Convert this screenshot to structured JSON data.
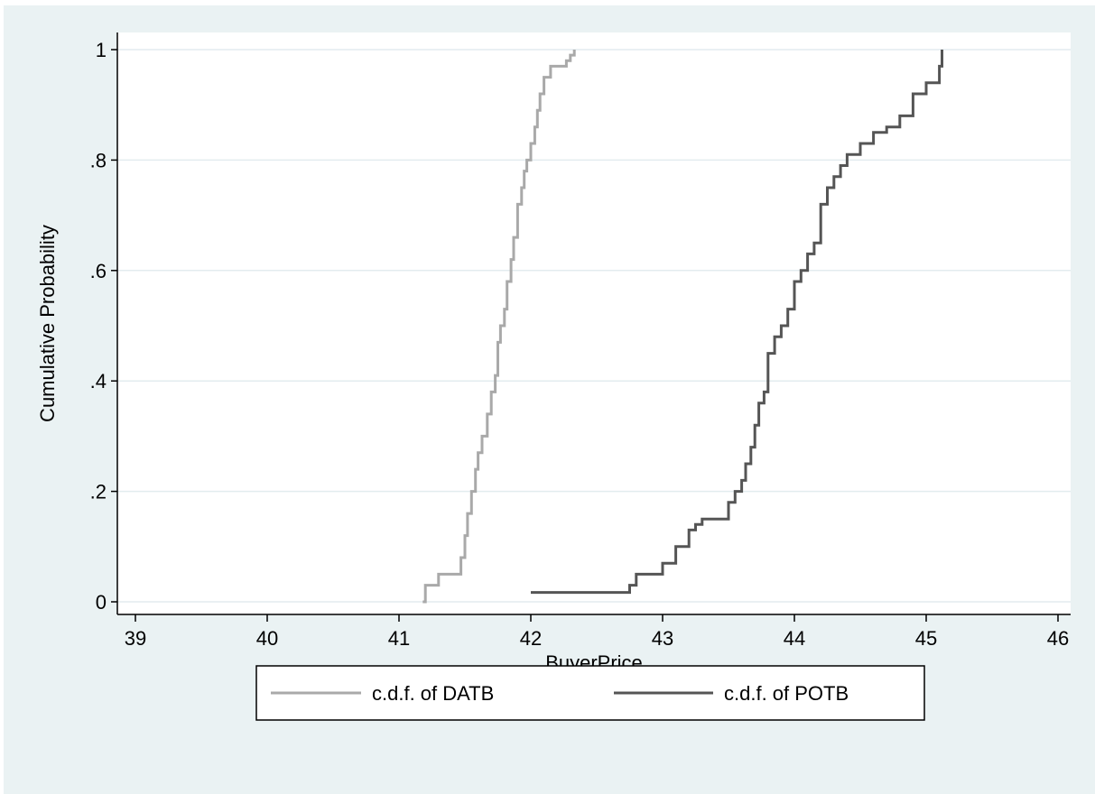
{
  "chart_data": {
    "type": "line",
    "subtype": "step",
    "xlabel": "BuyerPrice",
    "ylabel": "Cumulative Probability",
    "xlim": [
      39,
      46
    ],
    "ylim": [
      0,
      1
    ],
    "xticks": [
      "39",
      "40",
      "41",
      "42",
      "43",
      "44",
      "45",
      "46"
    ],
    "yticks": [
      "0",
      ".2",
      ".4",
      ".6",
      ".8",
      "1"
    ],
    "grid": true,
    "legend_position": "bottom",
    "colors": {
      "background": "#eaf2f3",
      "plot": "#ffffff",
      "grid": "#e3ecef",
      "datb": "#a9a9a9",
      "potb": "#555555"
    },
    "series": [
      {
        "name": "c.d.f. of  DATB",
        "x": [
          41.18,
          41.2,
          41.3,
          41.47,
          41.5,
          41.52,
          41.55,
          41.58,
          41.6,
          41.63,
          41.67,
          41.7,
          41.73,
          41.75,
          41.77,
          41.8,
          41.82,
          41.85,
          41.87,
          41.9,
          41.93,
          41.95,
          41.97,
          42.0,
          42.03,
          42.05,
          42.07,
          42.1,
          42.15,
          42.2,
          42.27,
          42.3,
          42.33
        ],
        "y": [
          0.0,
          0.03,
          0.05,
          0.08,
          0.12,
          0.16,
          0.2,
          0.24,
          0.27,
          0.3,
          0.34,
          0.38,
          0.41,
          0.47,
          0.5,
          0.53,
          0.58,
          0.62,
          0.66,
          0.72,
          0.75,
          0.78,
          0.8,
          0.83,
          0.86,
          0.89,
          0.92,
          0.95,
          0.97,
          0.97,
          0.98,
          0.99,
          1.0
        ]
      },
      {
        "name": "c.d.f. of  POTB",
        "x": [
          42.0,
          42.4,
          42.7,
          42.75,
          42.8,
          42.9,
          43.0,
          43.1,
          43.2,
          43.25,
          43.3,
          43.4,
          43.5,
          43.55,
          43.6,
          43.63,
          43.67,
          43.7,
          43.73,
          43.77,
          43.8,
          43.85,
          43.9,
          43.95,
          44.0,
          44.05,
          44.1,
          44.15,
          44.2,
          44.25,
          44.3,
          44.35,
          44.4,
          44.5,
          44.6,
          44.7,
          44.8,
          44.9,
          45.0,
          45.1,
          45.12
        ],
        "y": [
          0.017,
          0.017,
          0.017,
          0.03,
          0.05,
          0.05,
          0.07,
          0.1,
          0.13,
          0.14,
          0.15,
          0.15,
          0.18,
          0.2,
          0.22,
          0.25,
          0.28,
          0.32,
          0.36,
          0.38,
          0.45,
          0.48,
          0.5,
          0.53,
          0.58,
          0.6,
          0.63,
          0.65,
          0.72,
          0.75,
          0.77,
          0.79,
          0.81,
          0.83,
          0.85,
          0.86,
          0.88,
          0.92,
          0.94,
          0.97,
          1.0
        ]
      }
    ]
  }
}
